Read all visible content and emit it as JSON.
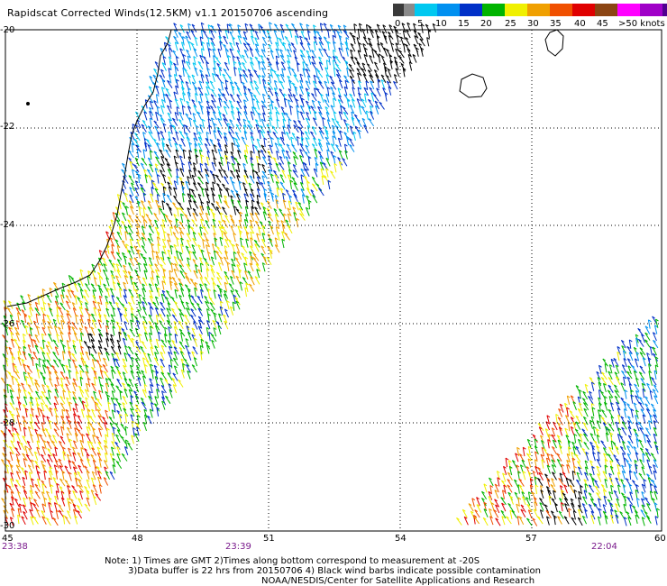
{
  "title": "Rapidscat Corrected Winds(12.5KM) v1.1 20150706 ascending",
  "legend": {
    "labels": [
      "0",
      "5",
      "10",
      "15",
      "20",
      "25",
      "30",
      "35",
      "40",
      "45",
      ">50 knots"
    ],
    "colors": [
      "#3a3a3a",
      "#8a8a8a",
      "#00c8f0",
      "#0090f0",
      "#0030c8",
      "#00b400",
      "#f0f000",
      "#f0a000",
      "#f05000",
      "#e00000",
      "#8b4513",
      "#ff00ff",
      "#a000c8",
      "#500090"
    ]
  },
  "map": {
    "lat_labels": [
      "-20",
      "-22",
      "-24",
      "-26",
      "-28",
      "-30"
    ],
    "lon_labels": [
      "45",
      "48",
      "51",
      "54",
      "57",
      "60"
    ],
    "times": [
      "23:38",
      "23:39",
      "22:04"
    ]
  },
  "notes": {
    "line1": "Note: 1) Times are GMT 2)Times along bottom correspond to measurement at -20S",
    "line2": "3)Data buffer is 22 hrs from 20150706 4) Black wind barbs indicate possible contamination",
    "line3": "NOAA/NESDIS/Center for Satellite Applications and Research"
  }
}
